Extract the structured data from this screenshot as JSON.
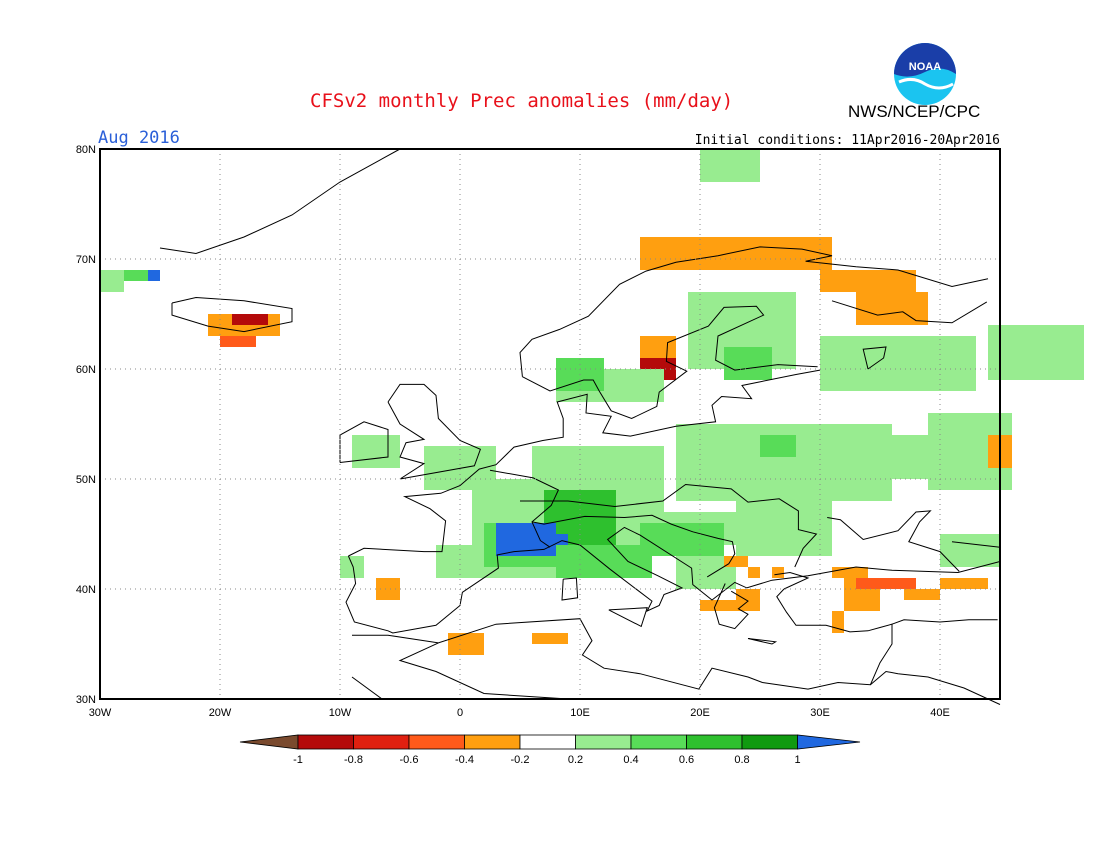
{
  "header": {
    "title": "CFSv2 monthly Prec anomalies (mm/day)",
    "org": "NWS/NCEP/CPC",
    "logo_text": "NOAA",
    "month": "Aug 2016",
    "initial_conditions": "Initial conditions: 11Apr2016-20Apr2016"
  },
  "map": {
    "lat_labels": [
      "80N",
      "70N",
      "60N",
      "50N",
      "40N",
      "30N"
    ],
    "lon_labels": [
      "30W",
      "20W",
      "10W",
      "0",
      "10E",
      "20E",
      "30E",
      "40E"
    ]
  },
  "legend": {
    "ticks": [
      "-1",
      "-0.8",
      "-0.6",
      "-0.4",
      "-0.2",
      "0.2",
      "0.4",
      "0.6",
      "0.8",
      "1"
    ],
    "colors": [
      "#7a4a2e",
      "#b40a0a",
      "#e02010",
      "#ff5a1a",
      "#ff9f10",
      "#ffffff",
      "#98ec90",
      "#58dc58",
      "#2ec02e",
      "#109a10",
      "#2068e0"
    ]
  },
  "colors": {
    "title": "#e8101a",
    "month": "#2a5fd8",
    "frame": "#000000"
  }
}
